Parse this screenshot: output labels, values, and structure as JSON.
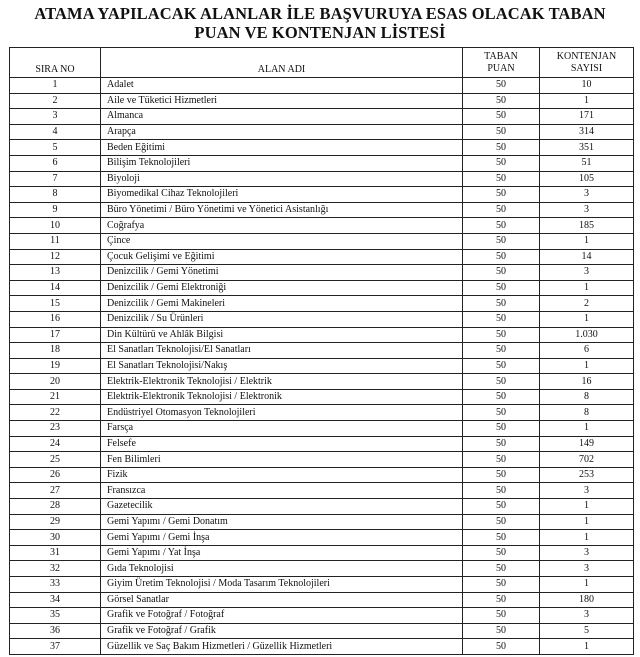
{
  "title": {
    "line1": "ATAMA YAPILACAK ALANLAR İLE BAŞVURUYA ESAS OLACAK TABAN",
    "line2": "PUAN VE KONTENJAN LİSTESİ"
  },
  "table": {
    "headers": {
      "sira_no": "SIRA NO",
      "alan_adi": "ALAN ADI",
      "taban_puan_1": "TABAN",
      "taban_puan_2": "PUAN",
      "kontenjan_1": "KONTENJAN",
      "kontenjan_2": "SAYISI"
    },
    "rows": [
      [
        "1",
        "Adalet",
        "50",
        "10"
      ],
      [
        "2",
        "Aile ve Tüketici Hizmetleri",
        "50",
        "1"
      ],
      [
        "3",
        "Almanca",
        "50",
        "171"
      ],
      [
        "4",
        "Arapça",
        "50",
        "314"
      ],
      [
        "5",
        "Beden Eğitimi",
        "50",
        "351"
      ],
      [
        "6",
        "Bilişim Teknolojileri",
        "50",
        "51"
      ],
      [
        "7",
        "Biyoloji",
        "50",
        "105"
      ],
      [
        "8",
        "Biyomedikal Cihaz Teknolojileri",
        "50",
        "3"
      ],
      [
        "9",
        "Büro Yönetimi / Büro Yönetimi ve Yönetici Asistanlığı",
        "50",
        "3"
      ],
      [
        "10",
        "Coğrafya",
        "50",
        "185"
      ],
      [
        "11",
        "Çince",
        "50",
        "1"
      ],
      [
        "12",
        "Çocuk Gelişimi ve Eğitimi",
        "50",
        "14"
      ],
      [
        "13",
        "Denizcilik / Gemi Yönetimi",
        "50",
        "3"
      ],
      [
        "14",
        "Denizcilik / Gemi Elektroniği",
        "50",
        "1"
      ],
      [
        "15",
        "Denizcilik / Gemi Makineleri",
        "50",
        "2"
      ],
      [
        "16",
        "Denizcilik / Su Ürünleri",
        "50",
        "1"
      ],
      [
        "17",
        "Din Kültürü ve Ahlâk Bilgisi",
        "50",
        "1.030"
      ],
      [
        "18",
        "El Sanatları Teknolojisi/El Sanatları",
        "50",
        "6"
      ],
      [
        "19",
        "El Sanatları Teknolojisi/Nakış",
        "50",
        "1"
      ],
      [
        "20",
        "Elektrik-Elektronik Teknolojisi / Elektrik",
        "50",
        "16"
      ],
      [
        "21",
        "Elektrik-Elektronik Teknolojisi / Elektronik",
        "50",
        "8"
      ],
      [
        "22",
        "Endüstriyel Otomasyon Teknolojileri",
        "50",
        "8"
      ],
      [
        "23",
        "Farsça",
        "50",
        "1"
      ],
      [
        "24",
        "Felsefe",
        "50",
        "149"
      ],
      [
        "25",
        "Fen Bilimleri",
        "50",
        "702"
      ],
      [
        "26",
        "Fizik",
        "50",
        "253"
      ],
      [
        "27",
        "Fransızca",
        "50",
        "3"
      ],
      [
        "28",
        "Gazetecilik",
        "50",
        "1"
      ],
      [
        "29",
        "Gemi Yapımı / Gemi Donatım",
        "50",
        "1"
      ],
      [
        "30",
        "Gemi Yapımı / Gemi İnşa",
        "50",
        "1"
      ],
      [
        "31",
        "Gemi Yapımı / Yat İnşa",
        "50",
        "3"
      ],
      [
        "32",
        "Gıda Teknolojisi",
        "50",
        "3"
      ],
      [
        "33",
        "Giyim Üretim Teknolojisi / Moda Tasarım Teknolojileri",
        "50",
        "1"
      ],
      [
        "34",
        "Görsel Sanatlar",
        "50",
        "180"
      ],
      [
        "35",
        "Grafik ve Fotoğraf / Fotoğraf",
        "50",
        "3"
      ],
      [
        "36",
        "Grafik ve Fotoğraf / Grafik",
        "50",
        "5"
      ],
      [
        "37",
        "Güzellik ve Saç Bakım Hizmetleri / Güzellik Hizmetleri",
        "50",
        "1"
      ]
    ]
  }
}
